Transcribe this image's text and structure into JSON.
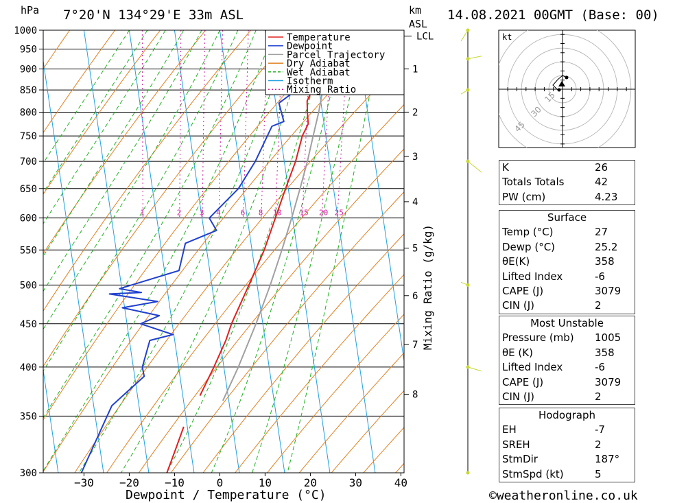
{
  "header": {
    "location": "7°20'N 134°29'E 33m ASL",
    "datetime": "14.08.2021 00GMT (Base: 00)",
    "pressure_unit": "hPa",
    "height_unit_km": "km",
    "height_unit_asl": "ASL"
  },
  "footer": {
    "credit": "©weatheronline.co.uk"
  },
  "chart_data": {
    "type": "line",
    "title": "",
    "xlabel": "Dewpoint / Temperature (°C)",
    "ylabel": "hPa",
    "secondary_ylabel": "Mixing Ratio (g/kg)",
    "x_ticks": [
      -30,
      -20,
      -10,
      0,
      10,
      20,
      30,
      40
    ],
    "pressure_levels": [
      300,
      350,
      400,
      450,
      500,
      550,
      600,
      650,
      700,
      750,
      800,
      850,
      900,
      950,
      1000
    ],
    "height_km_ticks": [
      "1",
      "2",
      "3",
      "4",
      "5",
      "6",
      "7",
      "8"
    ],
    "lcl_label": "LCL",
    "mixing_ratio_labels": [
      "1",
      "2",
      "3",
      "4",
      "6",
      "8",
      "10",
      "15",
      "20",
      "25"
    ],
    "legend": [
      "Temperature",
      "Dewpoint",
      "Parcel Trajectory",
      "Dry Adiabat",
      "Wet Adiabat",
      "Isotherm",
      "Mixing Ratio"
    ],
    "colors": {
      "temperature": "#e02020",
      "dewpoint": "#2040d0",
      "parcel": "#a0a0a0",
      "dry_adiabat": "#e08020",
      "wet_adiabat": "#20b020",
      "isotherm": "#20a0e0",
      "mixing_ratio": "#d020a0",
      "wind": "#c8d830"
    },
    "temperature": [
      {
        "p": 1000,
        "t": 27
      },
      {
        "p": 975,
        "t": 25
      },
      {
        "p": 950,
        "t": 23.4
      },
      {
        "p": 925,
        "t": 22.2
      },
      {
        "p": 900,
        "t": 21
      },
      {
        "p": 850,
        "t": 18.5
      },
      {
        "p": 825,
        "t": 17
      },
      {
        "p": 800,
        "t": 16.7
      },
      {
        "p": 775,
        "t": 16.5
      },
      {
        "p": 750,
        "t": 14.8
      },
      {
        "p": 700,
        "t": 12.5
      },
      {
        "p": 650,
        "t": 9.4
      },
      {
        "p": 600,
        "t": 6.2
      },
      {
        "p": 550,
        "t": 2.7
      },
      {
        "p": 500,
        "t": -1.8
      },
      {
        "p": 475,
        "t": -4.3
      },
      {
        "p": 450,
        "t": -6.9
      },
      {
        "p": 430,
        "t": -8.7
      },
      {
        "p": 400,
        "t": -12.2
      },
      {
        "p": 370,
        "t": -16.2
      }
    ],
    "temperature_upper": [
      {
        "p": 300,
        "t": -26
      },
      {
        "p": 320,
        "t": -23.3
      },
      {
        "p": 340,
        "t": -20.8
      }
    ],
    "dewpoint": [
      {
        "p": 1000,
        "t": 25.2
      },
      {
        "p": 975,
        "t": 23.6
      },
      {
        "p": 950,
        "t": 22
      },
      {
        "p": 925,
        "t": 19.1
      },
      {
        "p": 900,
        "t": 17.8
      },
      {
        "p": 850,
        "t": 15
      },
      {
        "p": 820,
        "t": 10.7
      },
      {
        "p": 780,
        "t": 11.2
      },
      {
        "p": 770,
        "t": 8.4
      },
      {
        "p": 700,
        "t": 3.6
      },
      {
        "p": 650,
        "t": -1
      },
      {
        "p": 600,
        "t": -8.4
      },
      {
        "p": 580,
        "t": -7.2
      },
      {
        "p": 560,
        "t": -14.5
      },
      {
        "p": 520,
        "t": -16.8
      },
      {
        "p": 495,
        "t": -30.5
      },
      {
        "p": 490,
        "t": -25.8
      },
      {
        "p": 488,
        "t": -32.9
      },
      {
        "p": 478,
        "t": -22.5
      },
      {
        "p": 470,
        "t": -30.5
      },
      {
        "p": 460,
        "t": -22.6
      },
      {
        "p": 450,
        "t": -27
      },
      {
        "p": 437,
        "t": -20.2
      },
      {
        "p": 430,
        "t": -25.5
      },
      {
        "p": 400,
        "t": -28
      },
      {
        "p": 390,
        "t": -27.9
      },
      {
        "p": 360,
        "t": -36
      },
      {
        "p": 300,
        "t": -44.9
      }
    ],
    "parcel": [
      {
        "p": 1000,
        "t": 27
      },
      {
        "p": 980,
        "t": 25.2
      },
      {
        "p": 950,
        "t": 24.3
      },
      {
        "p": 900,
        "t": 22.6
      },
      {
        "p": 850,
        "t": 20.8
      },
      {
        "p": 800,
        "t": 19.2
      },
      {
        "p": 750,
        "t": 17.2
      },
      {
        "p": 700,
        "t": 15.1
      },
      {
        "p": 650,
        "t": 12.6
      },
      {
        "p": 600,
        "t": 9.8
      },
      {
        "p": 550,
        "t": 6.6
      },
      {
        "p": 500,
        "t": 2.9
      },
      {
        "p": 450,
        "t": -1.5
      },
      {
        "p": 400,
        "t": -6.8
      },
      {
        "p": 365,
        "t": -11.3
      }
    ],
    "hodograph": {
      "unit": "kt",
      "ring_labels": [
        "15",
        "30",
        "45"
      ],
      "storm_dir": "187°",
      "storm_speed_kt": 5
    },
    "wind_profile_pressures": [
      300,
      400,
      500,
      700,
      850,
      925,
      1000
    ]
  },
  "indices": {
    "basic": [
      {
        "label": "K",
        "value": "26"
      },
      {
        "label": "Totals Totals",
        "value": "42"
      },
      {
        "label": "PW (cm)",
        "value": "4.23"
      }
    ],
    "surface": {
      "title": "Surface",
      "rows": [
        {
          "label": "Temp (°C)",
          "value": "27"
        },
        {
          "label": "Dewp (°C)",
          "value": "25.2"
        },
        {
          "label": "θE(K)",
          "value": "358"
        },
        {
          "label": "Lifted Index",
          "value": "-6"
        },
        {
          "label": "CAPE (J)",
          "value": "3079"
        },
        {
          "label": "CIN (J)",
          "value": "2"
        }
      ]
    },
    "most_unstable": {
      "title": "Most Unstable",
      "rows": [
        {
          "label": "Pressure (mb)",
          "value": "1005"
        },
        {
          "label": "θE (K)",
          "value": "358"
        },
        {
          "label": "Lifted Index",
          "value": "-6"
        },
        {
          "label": "CAPE (J)",
          "value": "3079"
        },
        {
          "label": "CIN (J)",
          "value": "2"
        }
      ]
    },
    "hodograph": {
      "title": "Hodograph",
      "rows": [
        {
          "label": "EH",
          "value": "-7"
        },
        {
          "label": "SREH",
          "value": "2"
        },
        {
          "label": "StmDir",
          "value": "187°"
        },
        {
          "label": "StmSpd (kt)",
          "value": "5"
        }
      ]
    }
  }
}
